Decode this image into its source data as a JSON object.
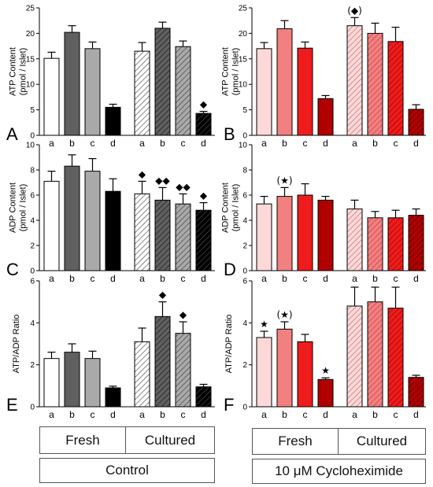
{
  "panels": [
    "A",
    "B",
    "C",
    "D",
    "E",
    "F"
  ],
  "legend": {
    "left": {
      "fresh": "Fresh",
      "cultured": "Cultured",
      "treatment": "Control"
    },
    "right": {
      "fresh": "Fresh",
      "cultured": "Cultured",
      "treatment": "10 μM Cycloheximide"
    }
  },
  "colors": {
    "control": [
      "#ffffff",
      "#606060",
      "#a9a9a9",
      "#000000"
    ],
    "cycloheximide": [
      "#fdd8d8",
      "#f28080",
      "#ee1c1c",
      "#b00000"
    ]
  },
  "chart_data": [
    {
      "panel": "A",
      "type": "bar",
      "ylabel": "ATP Content (pmol / Islet)",
      "ylim": [
        0,
        25
      ],
      "yticks": [
        0,
        5,
        10,
        15,
        20,
        25
      ],
      "categories": [
        "a",
        "b",
        "c",
        "d",
        "a",
        "b",
        "c",
        "d"
      ],
      "series": [
        {
          "values": [
            15.1,
            20.2,
            17.0,
            5.5,
            16.5,
            21.0,
            17.4,
            4.3
          ],
          "errors": [
            1.2,
            1.3,
            1.3,
            0.6,
            1.7,
            1.2,
            1.1,
            0.4
          ]
        }
      ],
      "annotations": [
        {
          "bar": 7,
          "text": "◆"
        }
      ]
    },
    {
      "panel": "B",
      "type": "bar",
      "ylabel": "ATP Content (pmol / Islet)",
      "ylim": [
        0,
        25
      ],
      "yticks": [
        0,
        5,
        10,
        15,
        20,
        25
      ],
      "categories": [
        "a",
        "b",
        "c",
        "d",
        "a",
        "b",
        "c",
        "d"
      ],
      "series": [
        {
          "values": [
            17.0,
            20.9,
            17.1,
            7.2,
            21.5,
            20.0,
            18.4,
            5.1
          ],
          "errors": [
            1.2,
            1.6,
            1.2,
            0.6,
            1.6,
            2.0,
            2.8,
            0.9
          ]
        }
      ],
      "annotations": [
        {
          "bar": 4,
          "text": "(◆)"
        }
      ]
    },
    {
      "panel": "C",
      "type": "bar",
      "ylabel": "ADP Content (pmol / Islet)",
      "ylim": [
        0,
        10
      ],
      "yticks": [
        0,
        2,
        4,
        6,
        8,
        10
      ],
      "categories": [
        "a",
        "b",
        "c",
        "d",
        "a",
        "b",
        "c",
        "d"
      ],
      "series": [
        {
          "values": [
            7.1,
            8.3,
            7.9,
            6.3,
            6.1,
            5.6,
            5.3,
            4.8
          ],
          "errors": [
            0.8,
            0.9,
            1.0,
            1.0,
            1.0,
            1.0,
            0.8,
            0.6
          ]
        }
      ],
      "annotations": [
        {
          "bar": 4,
          "text": "◆"
        },
        {
          "bar": 5,
          "text": "◆◆"
        },
        {
          "bar": 6,
          "text": "◆◆"
        },
        {
          "bar": 7,
          "text": "◆"
        }
      ]
    },
    {
      "panel": "D",
      "type": "bar",
      "ylabel": "ADP Content (pmol / Islet)",
      "ylim": [
        0,
        10
      ],
      "yticks": [
        0,
        2,
        4,
        6,
        8,
        10
      ],
      "categories": [
        "a",
        "b",
        "c",
        "d",
        "a",
        "b",
        "c",
        "d"
      ],
      "series": [
        {
          "values": [
            5.3,
            5.9,
            6.0,
            5.6,
            4.9,
            4.2,
            4.2,
            4.4
          ],
          "errors": [
            0.6,
            0.7,
            0.9,
            0.3,
            0.7,
            0.5,
            0.6,
            0.5
          ]
        }
      ],
      "annotations": [
        {
          "bar": 1,
          "text": "(★)"
        }
      ]
    },
    {
      "panel": "E",
      "type": "bar",
      "ylabel": "ATP/ADP Ratio",
      "ylim": [
        0,
        6
      ],
      "yticks": [
        0,
        2,
        4,
        6
      ],
      "categories": [
        "a",
        "b",
        "c",
        "d",
        "a",
        "b",
        "c",
        "d"
      ],
      "series": [
        {
          "values": [
            2.3,
            2.6,
            2.3,
            0.9,
            3.1,
            4.3,
            3.5,
            0.95
          ],
          "errors": [
            0.3,
            0.4,
            0.35,
            0.08,
            0.65,
            0.7,
            0.55,
            0.12
          ]
        }
      ],
      "annotations": [
        {
          "bar": 5,
          "text": "◆"
        },
        {
          "bar": 6,
          "text": "◆"
        }
      ]
    },
    {
      "panel": "F",
      "type": "bar",
      "ylabel": "ATP/ADP Ratio",
      "ylim": [
        0,
        6
      ],
      "yticks": [
        0,
        2,
        4,
        6
      ],
      "categories": [
        "a",
        "b",
        "c",
        "d",
        "a",
        "b",
        "c",
        "d"
      ],
      "series": [
        {
          "values": [
            3.3,
            3.7,
            3.1,
            1.3,
            4.8,
            5.0,
            4.7,
            1.4
          ],
          "errors": [
            0.3,
            0.35,
            0.35,
            0.08,
            0.9,
            0.7,
            1.0,
            0.1
          ]
        }
      ],
      "annotations": [
        {
          "bar": 0,
          "text": "★"
        },
        {
          "bar": 1,
          "text": "(★)"
        },
        {
          "bar": 3,
          "text": "★"
        }
      ]
    }
  ]
}
